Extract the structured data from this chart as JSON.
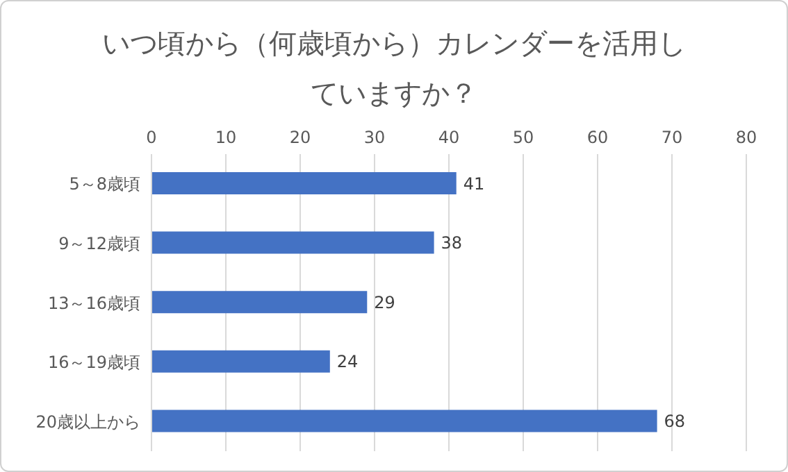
{
  "chart_data": {
    "type": "bar",
    "orientation": "horizontal",
    "title": "いつ頃から（何歳頃から）カレンダーを活用していますか？",
    "categories": [
      "5～8歳頃",
      "9～12歳頃",
      "13～16歳頃",
      "16～19歳頃",
      "20歳以上から"
    ],
    "values": [
      41,
      38,
      29,
      24,
      68
    ],
    "color": "#4472c4",
    "xlim": [
      0,
      80
    ],
    "xticks": [
      0,
      10,
      20,
      30,
      40,
      50,
      60,
      70,
      80
    ],
    "grid": "x",
    "data_labels": true
  }
}
